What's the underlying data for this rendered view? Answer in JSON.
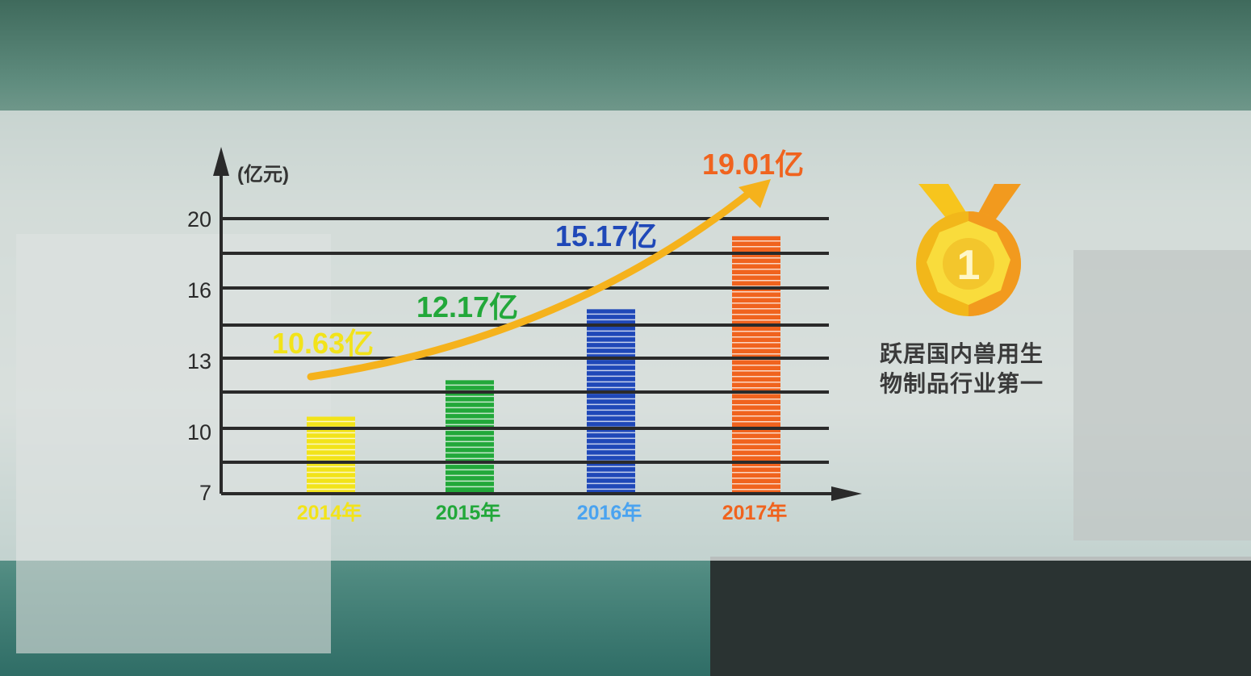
{
  "chart_data": {
    "type": "bar",
    "ylabel": "(亿元)",
    "yticks": [
      7,
      10,
      13,
      16,
      20
    ],
    "categories": [
      "2014年",
      "2015年",
      "2016年",
      "2017年"
    ],
    "values": [
      10.63,
      12.17,
      15.17,
      19.01
    ],
    "data_labels": [
      "10.63亿",
      "12.17亿",
      "15.17亿",
      "19.01亿"
    ],
    "colors": [
      "#f2e31a",
      "#22a83a",
      "#1f48b8",
      "#f0631e"
    ],
    "label_colors": [
      "#f2e31a",
      "#22a83a",
      "#1f48b8",
      "#f0631e"
    ],
    "category_colors": [
      "#f2e31a",
      "#22a83a",
      "#4aa3f0",
      "#f0631e"
    ],
    "grid": true,
    "trend_arrow_color": "#f5b21c"
  },
  "badge": {
    "text": "1",
    "caption_line1": "跃居国内兽用生",
    "caption_line2": "物制品行业第一"
  }
}
